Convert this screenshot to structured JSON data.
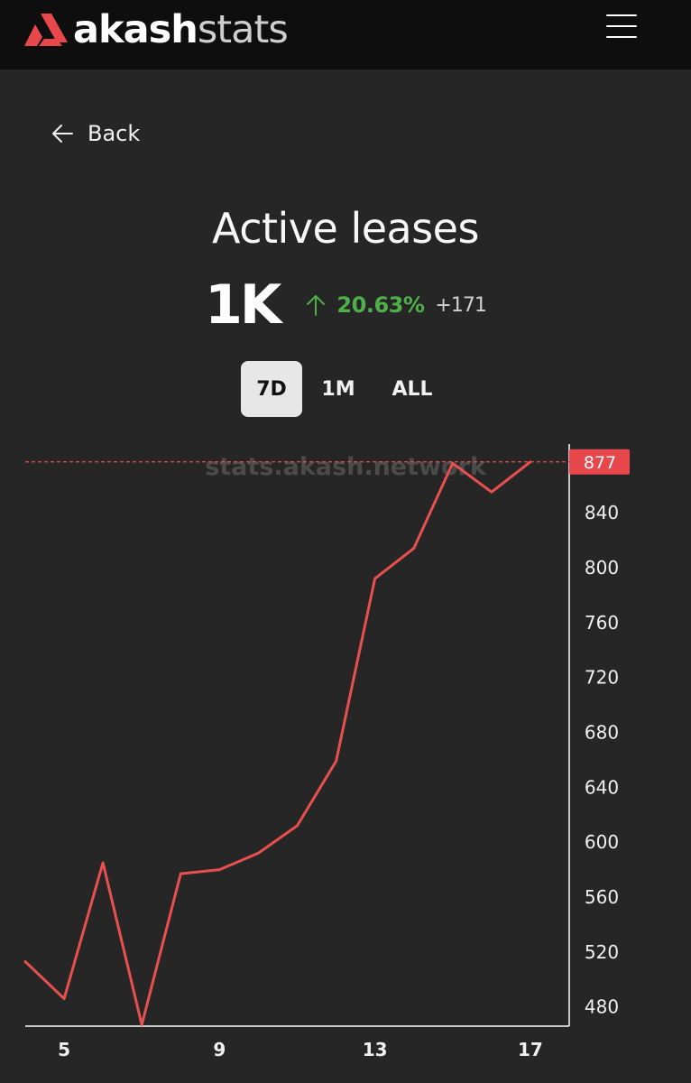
{
  "header": {
    "brand_primary": "akash",
    "brand_secondary": "stats",
    "accent_color": "#e8474c",
    "menu_icon": "hamburger-menu-icon"
  },
  "nav": {
    "back_label": "Back",
    "back_icon": "arrow-left-icon"
  },
  "page": {
    "title": "Active leases",
    "value": "1K",
    "change_icon": "arrow-up-icon",
    "change_percent": "20.63%",
    "change_delta": "+171",
    "change_color": "#4fb04a"
  },
  "periods": {
    "items": [
      "7D",
      "1M",
      "ALL"
    ],
    "selected": "7D"
  },
  "chart_data": {
    "type": "line",
    "watermark": "stats.akash.network",
    "line_color": "#e85050",
    "x": [
      4,
      5,
      6,
      7,
      8,
      9,
      10,
      11,
      12,
      13,
      14,
      15,
      16,
      17
    ],
    "values": [
      513,
      486,
      585,
      467,
      577,
      580,
      592,
      612,
      659,
      792,
      814,
      876,
      855,
      877
    ],
    "x_ticks": [
      "5",
      "9",
      "13",
      "17"
    ],
    "x_tick_values": [
      5,
      9,
      13,
      17
    ],
    "y_ticks": [
      "480",
      "520",
      "560",
      "600",
      "640",
      "680",
      "720",
      "760",
      "800",
      "840"
    ],
    "y_tick_values": [
      480,
      520,
      560,
      600,
      640,
      680,
      720,
      760,
      800,
      840
    ],
    "last_value_label": "877",
    "last_value": 877,
    "ylim": [
      466,
      890
    ],
    "xlim": [
      4,
      18
    ]
  }
}
